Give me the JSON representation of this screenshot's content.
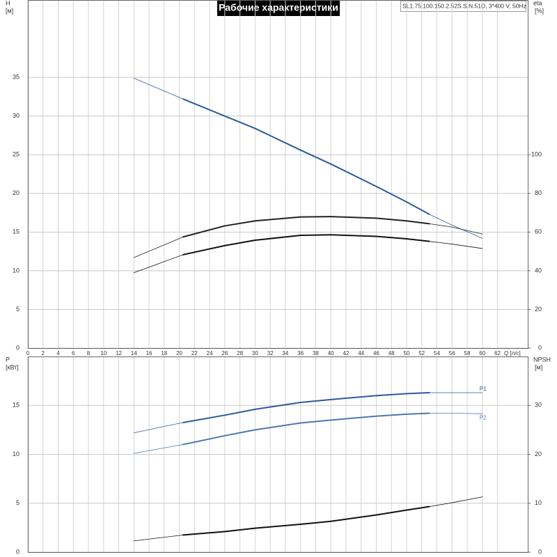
{
  "header": {
    "title": "Рабочие характеристики",
    "model": "SL1.75.100.150.2.52S.S.N.51D, 3*400 V, 50Hz"
  },
  "chart_data": [
    {
      "type": "line",
      "x_label": "Q [л/с]",
      "y_label": "H",
      "y_unit": "[м]",
      "y2_label": "eta",
      "y2_unit": "[%]",
      "xlim": [
        0,
        66
      ],
      "xticks": [
        0,
        2,
        4,
        6,
        8,
        10,
        12,
        14,
        16,
        18,
        20,
        22,
        24,
        26,
        28,
        30,
        32,
        34,
        36,
        38,
        40,
        42,
        44,
        46,
        48,
        50,
        52,
        54,
        56,
        58,
        60,
        62
      ],
      "ylim": [
        0,
        45
      ],
      "yticks": [
        0,
        5,
        10,
        15,
        20,
        25,
        30,
        35
      ],
      "y2lim": [
        0,
        180
      ],
      "y2ticks": [
        0,
        20,
        40,
        60,
        80,
        100
      ],
      "grid": true,
      "bold_range": [
        20.5,
        53
      ],
      "x": [
        14,
        20.5,
        26,
        30,
        36,
        40,
        46,
        50,
        53,
        56,
        60
      ],
      "series": [
        {
          "color": "#2b5a9a",
          "axis": "y",
          "values": [
            34.9,
            32.2,
            30.0,
            28.4,
            25.6,
            23.8,
            20.9,
            18.9,
            17.3,
            15.9,
            14.2
          ]
        },
        {
          "color": "#222222",
          "axis": "y2",
          "values": [
            46.8,
            57.5,
            63.2,
            65.8,
            67.8,
            68.0,
            67.2,
            65.8,
            64.3,
            62.6,
            59.0
          ]
        },
        {
          "color": "#111111",
          "axis": "y2",
          "values": [
            39.0,
            48.3,
            53.0,
            55.8,
            58.3,
            58.6,
            57.8,
            56.5,
            55.2,
            53.8,
            51.5
          ]
        }
      ]
    },
    {
      "type": "line",
      "y_label": "P",
      "y_unit": "[кВт]",
      "y2_label": "NPSH",
      "y2_unit": "[м]",
      "xlim": [
        0,
        66
      ],
      "ylim": [
        0,
        20
      ],
      "yticks": [
        0,
        5,
        10,
        15
      ],
      "y2lim": [
        0,
        40
      ],
      "y2ticks": [
        0,
        10,
        20,
        30
      ],
      "grid": true,
      "bold_range": [
        20.5,
        53
      ],
      "x": [
        14,
        20.5,
        26,
        30,
        36,
        40,
        46,
        50,
        53,
        56,
        60
      ],
      "series": [
        {
          "name": "P1",
          "color": "#2b5a9a",
          "axis": "y",
          "values": [
            12.2,
            13.25,
            14.0,
            14.6,
            15.3,
            15.6,
            16.0,
            16.2,
            16.3,
            16.3,
            16.3
          ]
        },
        {
          "name": "P2",
          "color": "#4a78b0",
          "axis": "y",
          "values": [
            10.1,
            11.0,
            11.9,
            12.5,
            13.2,
            13.5,
            13.9,
            14.1,
            14.2,
            14.2,
            14.15
          ]
        },
        {
          "color": "#111111",
          "axis": "y2",
          "values": [
            2.3,
            3.5,
            4.2,
            4.9,
            5.7,
            6.3,
            7.6,
            8.6,
            9.3,
            10.1,
            11.3
          ]
        }
      ]
    }
  ]
}
